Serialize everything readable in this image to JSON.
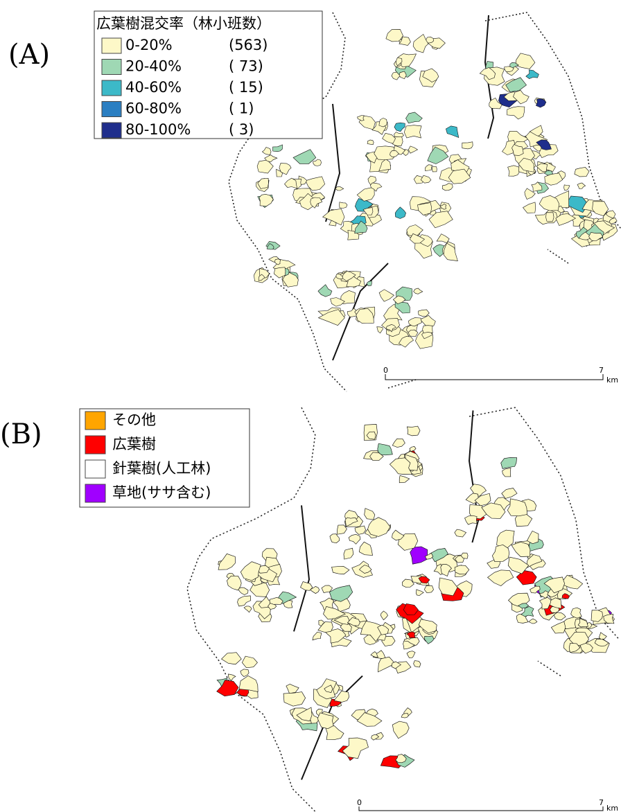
{
  "panel_a": {
    "label": "(A)",
    "legend": {
      "title": "広葉樹混交率（林小班数）",
      "items": [
        {
          "label": "0-20%",
          "count": "(563)",
          "color": "#fdf8c8"
        },
        {
          "label": "20-40%",
          "count": "( 73)",
          "color": "#9fd8b4"
        },
        {
          "label": "40-60%",
          "count": "( 15)",
          "color": "#3cb9c8"
        },
        {
          "label": "60-80%",
          "count": "(   1)",
          "color": "#2b7fc2"
        },
        {
          "label": "80-100%",
          "count": "(   3)",
          "color": "#1f2e8c"
        }
      ]
    },
    "scale": {
      "start": "0",
      "end": "7",
      "unit": "km"
    }
  },
  "panel_b": {
    "label": "(B)",
    "legend": {
      "items": [
        {
          "label": "その他",
          "color": "#ffa500"
        },
        {
          "label": "広葉樹",
          "color": "#ff0000"
        },
        {
          "label": "針葉樹(人工林)",
          "color": "#ffffff"
        },
        {
          "label": "草地(ササ含む)",
          "color": "#a000ff"
        }
      ]
    },
    "scale": {
      "start": "0",
      "end": "7",
      "unit": "km"
    }
  }
}
